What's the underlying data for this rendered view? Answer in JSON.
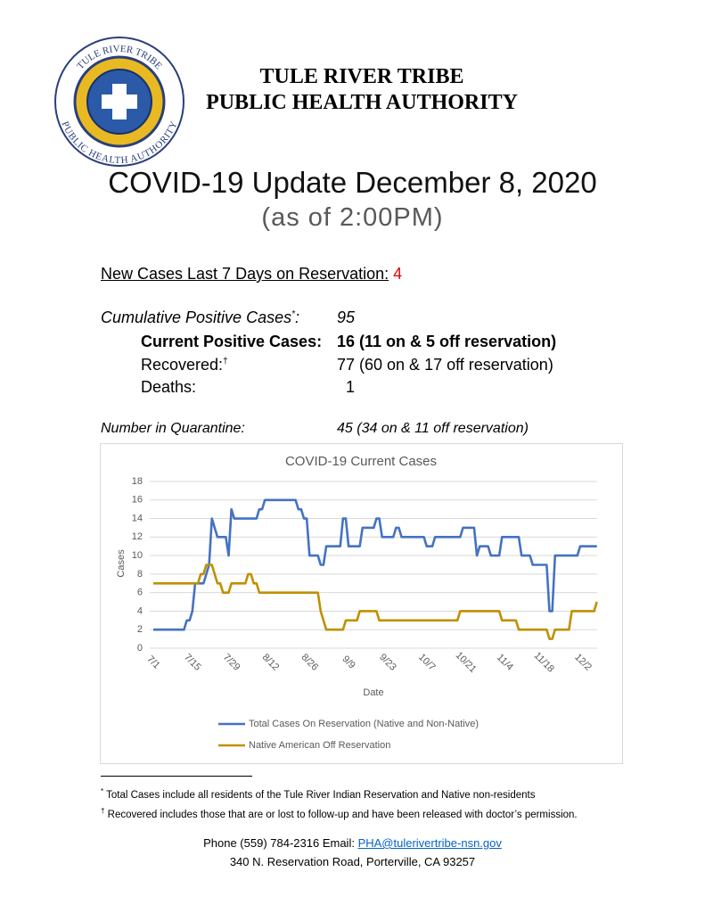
{
  "logo": {
    "top_text": "TULE RIVER TRIBE",
    "bottom_text": "PUBLIC HEALTH AUTHORITY"
  },
  "header": {
    "line1": "TULE RIVER TRIBE",
    "line2": "PUBLIC HEALTH AUTHORITY"
  },
  "update": {
    "title": "COVID-19 Update December 8, 2020",
    "subtitle": "(as of 2:00PM)"
  },
  "new_cases": {
    "label": "New Cases Last 7 Days on Reservation:",
    "value": 4
  },
  "stats": {
    "cumulative": {
      "label": "Cumulative Positive Cases",
      "note": "*",
      "suffix": ":",
      "value": 95
    },
    "current": {
      "label": "Current Positive Cases:",
      "value": "16 (11 on & 5 off reservation)"
    },
    "recovered": {
      "label": "Recovered:",
      "note": "†",
      "value": "77 (60 on & 17 off reservation)"
    },
    "deaths": {
      "label": "Deaths:",
      "value": 1
    },
    "quarantine": {
      "label": "Number in Quarantine:",
      "value": "45 (34 on & 11 off reservation)"
    }
  },
  "chart_data": {
    "type": "line",
    "title": "COVID-19 Current Cases",
    "x_label": "Date",
    "y_label": "Cases",
    "categories": [
      "7/1",
      null,
      null,
      null,
      null,
      null,
      null,
      null,
      null,
      null,
      null,
      null,
      null,
      null,
      "7/15",
      null,
      null,
      null,
      null,
      null,
      null,
      null,
      null,
      null,
      null,
      null,
      null,
      null,
      "7/29",
      null,
      null,
      null,
      null,
      null,
      null,
      null,
      null,
      null,
      null,
      null,
      null,
      null,
      "8/12",
      null,
      null,
      null,
      null,
      null,
      null,
      null,
      null,
      null,
      null,
      null,
      null,
      null,
      "8/26",
      null,
      null,
      null,
      null,
      null,
      null,
      null,
      null,
      null,
      null,
      null,
      null,
      null,
      "9/9",
      null,
      null,
      null,
      null,
      null,
      null,
      null,
      null,
      null,
      null,
      null,
      null,
      null,
      "9/23",
      null,
      null,
      null,
      null,
      null,
      null,
      null,
      null,
      null,
      null,
      null,
      null,
      null,
      "10/7",
      null,
      null,
      null,
      null,
      null,
      null,
      null,
      null,
      null,
      null,
      null,
      null,
      null,
      "10/21",
      null,
      null,
      null,
      null,
      null,
      null,
      null,
      null,
      null,
      null,
      null,
      null,
      null,
      "11/4",
      null,
      null,
      null,
      null,
      null,
      null,
      null,
      null,
      null,
      null,
      null,
      null,
      null,
      "11/18",
      null,
      null,
      null,
      null,
      null,
      null,
      null,
      null,
      null,
      null,
      null,
      null,
      null,
      "12/2",
      null,
      null,
      null,
      null,
      null
    ],
    "series": [
      {
        "name": "Total Cases On Reservation (Native and Non-Native)",
        "color": "#4472c4",
        "values": [
          2,
          2,
          2,
          2,
          2,
          2,
          2,
          2,
          2,
          2,
          2,
          2,
          3,
          3,
          4,
          7,
          7,
          7,
          7,
          8,
          9,
          14,
          13,
          12,
          12,
          12,
          12,
          10,
          15,
          14,
          14,
          14,
          14,
          14,
          14,
          14,
          14,
          14,
          15,
          15,
          16,
          16,
          16,
          16,
          16,
          16,
          16,
          16,
          16,
          16,
          16,
          16,
          15,
          15,
          14,
          14,
          10,
          10,
          10,
          10,
          9,
          9,
          11,
          11,
          11,
          11,
          11,
          11,
          14,
          14,
          11,
          11,
          11,
          11,
          11,
          13,
          13,
          13,
          13,
          13,
          14,
          14,
          12,
          12,
          12,
          12,
          12,
          13,
          13,
          12,
          12,
          12,
          12,
          12,
          12,
          12,
          12,
          12,
          11,
          11,
          11,
          12,
          12,
          12,
          12,
          12,
          12,
          12,
          12,
          12,
          12,
          13,
          13,
          13,
          13,
          13,
          10,
          11,
          11,
          11,
          11,
          10,
          10,
          10,
          10,
          12,
          12,
          12,
          12,
          12,
          12,
          12,
          10,
          10,
          10,
          10,
          9,
          9,
          9,
          9,
          9,
          9,
          4,
          4,
          10,
          10,
          10,
          10,
          10,
          10,
          10,
          10,
          10,
          11,
          11,
          11,
          11,
          11,
          11,
          11
        ]
      },
      {
        "name": "Native American Off Reservation",
        "color": "#bf9000",
        "values": [
          7,
          7,
          7,
          7,
          7,
          7,
          7,
          7,
          7,
          7,
          7,
          7,
          7,
          7,
          7,
          7,
          7,
          8,
          8,
          9,
          9,
          9,
          8,
          7,
          7,
          6,
          6,
          6,
          7,
          7,
          7,
          7,
          7,
          7,
          8,
          8,
          7,
          7,
          6,
          6,
          6,
          6,
          6,
          6,
          6,
          6,
          6,
          6,
          6,
          6,
          6,
          6,
          6,
          6,
          6,
          6,
          6,
          6,
          6,
          6,
          4,
          3,
          2,
          2,
          2,
          2,
          2,
          2,
          2,
          3,
          3,
          3,
          3,
          3,
          4,
          4,
          4,
          4,
          4,
          4,
          4,
          3,
          3,
          3,
          3,
          3,
          3,
          3,
          3,
          3,
          3,
          3,
          3,
          3,
          3,
          3,
          3,
          3,
          3,
          3,
          3,
          3,
          3,
          3,
          3,
          3,
          3,
          3,
          3,
          3,
          4,
          4,
          4,
          4,
          4,
          4,
          4,
          4,
          4,
          4,
          4,
          4,
          4,
          4,
          4,
          3,
          3,
          3,
          3,
          3,
          3,
          2,
          2,
          2,
          2,
          2,
          2,
          2,
          2,
          2,
          2,
          2,
          1,
          1,
          2,
          2,
          2,
          2,
          2,
          2,
          4,
          4,
          4,
          4,
          4,
          4,
          4,
          4,
          4,
          5
        ]
      }
    ],
    "ylim": [
      0,
      18
    ],
    "yticks": [
      0,
      2,
      4,
      6,
      8,
      10,
      12,
      14,
      16,
      18
    ],
    "grid": true,
    "legend": "bottom"
  },
  "footnotes": [
    {
      "mark": "*",
      "text": "Total Cases include all residents of the Tule River Indian Reservation and Native non-residents"
    },
    {
      "mark": "†",
      "text": "Recovered includes those that are or lost to follow-up and have been released with doctor’s permission."
    }
  ],
  "contact": {
    "phone_email": "Phone (559) 784-2316 Email: ",
    "email": "PHA@tulerivertribe-nsn.gov",
    "address": "340 N. Reservation Road, Porterville, CA 93257"
  }
}
